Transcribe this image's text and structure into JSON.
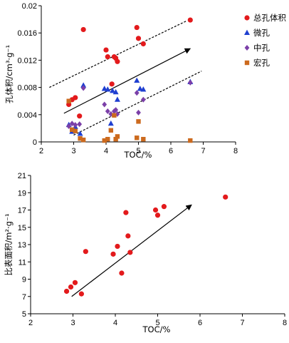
{
  "chart_data": [
    {
      "type": "scatter",
      "xlabel": "TOC/%",
      "ylabel": "孔体积/cm³·g⁻¹",
      "xlim": [
        2,
        8
      ],
      "ylim": [
        0,
        0.02
      ],
      "x_ticks": [
        "2",
        "3",
        "4",
        "5",
        "6",
        "7",
        "8"
      ],
      "y_ticks": [
        "0",
        "0.004",
        "0.008",
        "0.012",
        "0.016",
        "0.02"
      ],
      "legend_position": "top-right",
      "series": [
        {
          "name": "总孔体积",
          "color": "#e31a1c",
          "marker": "circle",
          "points": [
            [
              2.85,
              0.0055
            ],
            [
              2.95,
              0.0062
            ],
            [
              3.05,
              0.0065
            ],
            [
              3.18,
              0.0038
            ],
            [
              3.3,
              0.0165
            ],
            [
              4.0,
              0.0135
            ],
            [
              4.05,
              0.0125
            ],
            [
              4.18,
              0.0085
            ],
            [
              4.25,
              0.0125
            ],
            [
              4.3,
              0.0123
            ],
            [
              4.35,
              0.0118
            ],
            [
              4.95,
              0.0168
            ],
            [
              5.0,
              0.0152
            ],
            [
              5.15,
              0.0144
            ],
            [
              6.6,
              0.0179
            ]
          ]
        },
        {
          "name": "微孔",
          "color": "#1f3fd0",
          "marker": "triangle",
          "points": [
            [
              2.85,
              0.0025
            ],
            [
              2.95,
              0.0015
            ],
            [
              3.05,
              0.0022
            ],
            [
              3.2,
              0.0012
            ],
            [
              3.3,
              0.0083
            ],
            [
              3.95,
              0.0078
            ],
            [
              4.05,
              0.0077
            ],
            [
              4.15,
              0.0027
            ],
            [
              4.2,
              0.0075
            ],
            [
              4.3,
              0.0073
            ],
            [
              4.35,
              0.0062
            ],
            [
              4.95,
              0.009
            ],
            [
              5.05,
              0.0078
            ],
            [
              5.15,
              0.0077
            ],
            [
              6.6,
              0.0088
            ]
          ]
        },
        {
          "name": "中孔",
          "color": "#7b3fa8",
          "marker": "diamond",
          "points": [
            [
              2.85,
              0.0023
            ],
            [
              2.95,
              0.0027
            ],
            [
              3.05,
              0.0025
            ],
            [
              3.18,
              0.0026
            ],
            [
              3.3,
              0.0079
            ],
            [
              3.95,
              0.0055
            ],
            [
              4.05,
              0.0045
            ],
            [
              4.15,
              0.0041
            ],
            [
              4.25,
              0.0045
            ],
            [
              4.3,
              0.0047
            ],
            [
              4.35,
              0.0041
            ],
            [
              4.95,
              0.0072
            ],
            [
              5.0,
              0.0043
            ],
            [
              5.15,
              0.0062
            ],
            [
              6.6,
              0.0087
            ]
          ]
        },
        {
          "name": "宏孔",
          "color": "#cc6a1e",
          "marker": "square",
          "points": [
            [
              2.85,
              0.006
            ],
            [
              2.95,
              0.0018
            ],
            [
              3.05,
              0.0016
            ],
            [
              3.2,
              0.0005
            ],
            [
              3.3,
              0.0003
            ],
            [
              3.95,
              0.0002
            ],
            [
              4.05,
              0.0004
            ],
            [
              4.15,
              0.0017
            ],
            [
              4.25,
              0.0039
            ],
            [
              4.3,
              0.0004
            ],
            [
              4.35,
              0.0008
            ],
            [
              4.95,
              0.0006
            ],
            [
              5.0,
              0.003
            ],
            [
              5.15,
              0.0004
            ],
            [
              6.6,
              0.0002
            ]
          ]
        }
      ],
      "annotations": [
        {
          "kind": "dashed-line",
          "from": [
            2.25,
            0.008
          ],
          "to": [
            6.5,
            0.0178
          ]
        },
        {
          "kind": "dashed-line",
          "from": [
            3.0,
            0.001
          ],
          "to": [
            6.95,
            0.0104
          ]
        },
        {
          "kind": "arrow",
          "from": [
            2.7,
            0.0042
          ],
          "to": [
            6.6,
            0.0137
          ]
        }
      ]
    },
    {
      "type": "scatter",
      "xlabel": "TOC/%",
      "ylabel": "比表面积/m²·g⁻¹",
      "xlim": [
        2,
        8
      ],
      "ylim": [
        5,
        21
      ],
      "x_ticks": [
        "2",
        "3",
        "4",
        "5",
        "6",
        "7",
        "8"
      ],
      "y_ticks": [
        "5",
        "7",
        "9",
        "11",
        "13",
        "15",
        "17",
        "19",
        "21"
      ],
      "series": [
        {
          "color": "#e31a1c",
          "marker": "circle",
          "points": [
            [
              2.85,
              7.6
            ],
            [
              2.95,
              8.1
            ],
            [
              3.05,
              8.6
            ],
            [
              3.2,
              7.3
            ],
            [
              3.3,
              12.2
            ],
            [
              3.95,
              11.9
            ],
            [
              4.05,
              12.8
            ],
            [
              4.15,
              9.7
            ],
            [
              4.25,
              16.7
            ],
            [
              4.3,
              14.0
            ],
            [
              4.35,
              12.1
            ],
            [
              4.95,
              17.0
            ],
            [
              5.0,
              16.4
            ],
            [
              5.15,
              17.4
            ],
            [
              6.6,
              18.5
            ]
          ]
        }
      ],
      "annotations": [
        {
          "kind": "arrow",
          "from": [
            2.97,
            7.0
          ],
          "to": [
            5.8,
            17.6
          ]
        }
      ]
    }
  ]
}
